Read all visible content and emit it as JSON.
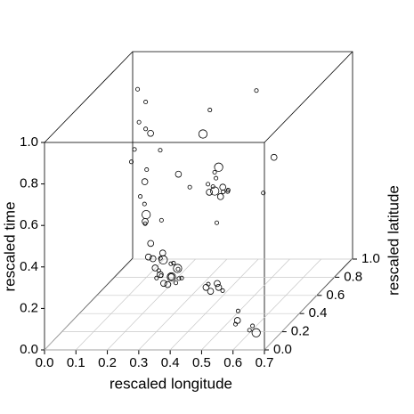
{
  "chart_data": {
    "type": "scatter3d",
    "xlabel": "rescaled longitude",
    "ylabel": "rescaled latitude",
    "zlabel": "rescaled time",
    "xlim": [
      0,
      0.7
    ],
    "ylim": [
      0,
      1
    ],
    "zlim": [
      0,
      1
    ],
    "xticks": [
      {
        "value": 0,
        "label": "0.0"
      },
      0.1,
      0.2,
      0.3,
      0.4,
      0.5,
      0.6,
      0.7
    ],
    "yticks": [
      {
        "value": 0,
        "label": "0.0"
      },
      0.2,
      0.4,
      0.6,
      0.8,
      {
        "value": 1,
        "label": "1.0"
      }
    ],
    "zticks": [
      {
        "value": 0,
        "label": "0.0"
      },
      0.2,
      0.4,
      0.6,
      0.8,
      {
        "value": 1,
        "label": "1.0"
      }
    ],
    "grid": true,
    "color": "#000000",
    "x": [
      0.24,
      0.25,
      0.26,
      0.27,
      0.28,
      0.29,
      0.3,
      0.31,
      0.25,
      0.27,
      0.29,
      0.32,
      0.23,
      0.26,
      0.28,
      0.3,
      0.33,
      0.24,
      0.27,
      0.31,
      0.38,
      0.39,
      0.4,
      0.41,
      0.42,
      0.43,
      0.44,
      0.4,
      0.41,
      0.42,
      0.39,
      0.45,
      0.1,
      0.12,
      0.11,
      0.13,
      0.09,
      0.14,
      0.12,
      0.1,
      0.13,
      0.11,
      0.15,
      0.08,
      0.12,
      0.14,
      0.43,
      0.45,
      0.46,
      0.47,
      0.44,
      0.48,
      0.2,
      0.35,
      0.28,
      0.5,
      0.18,
      0.45,
      0.3,
      0.38,
      0.22,
      0.52,
      0.33,
      0.26,
      0.58,
      0.62,
      0.6,
      0.64,
      0.56,
      0.63
    ],
    "y": [
      0.4,
      0.38,
      0.42,
      0.36,
      0.44,
      0.4,
      0.37,
      0.41,
      0.45,
      0.39,
      0.43,
      0.35,
      0.41,
      0.37,
      0.4,
      0.44,
      0.38,
      0.46,
      0.35,
      0.42,
      0.5,
      0.48,
      0.52,
      0.47,
      0.53,
      0.49,
      0.51,
      0.55,
      0.45,
      0.5,
      0.54,
      0.48,
      0.7,
      0.72,
      0.68,
      0.74,
      0.7,
      0.66,
      0.71,
      0.73,
      0.69,
      0.75,
      0.67,
      0.7,
      0.72,
      0.68,
      0.3,
      0.28,
      0.32,
      0.3,
      0.29,
      0.31,
      0.6,
      0.55,
      0.65,
      0.7,
      0.5,
      0.8,
      0.45,
      0.6,
      0.35,
      0.75,
      0.7,
      0.4,
      0.1,
      0.15,
      0.05,
      0.12,
      0.2,
      0.08
    ],
    "z": [
      0.22,
      0.18,
      0.25,
      0.2,
      0.16,
      0.24,
      0.19,
      0.21,
      0.27,
      0.15,
      0.23,
      0.17,
      0.26,
      0.22,
      0.14,
      0.2,
      0.18,
      0.24,
      0.21,
      0.16,
      0.58,
      0.55,
      0.6,
      0.56,
      0.53,
      0.57,
      0.54,
      0.64,
      0.59,
      0.52,
      0.62,
      0.56,
      0.95,
      0.88,
      0.8,
      0.72,
      0.66,
      0.58,
      0.5,
      0.42,
      0.35,
      0.28,
      0.22,
      0.6,
      0.75,
      0.15,
      0.17,
      0.16,
      0.18,
      0.17,
      0.19,
      0.15,
      0.7,
      0.8,
      0.5,
      0.45,
      0.4,
      0.9,
      0.65,
      0.35,
      0.55,
      0.6,
      0.85,
      0.45,
      0.08,
      0.05,
      0.12,
      0.03,
      0.1,
      0.06
    ],
    "sizes": [
      2,
      1,
      3,
      1,
      2,
      1,
      3,
      1,
      2,
      2,
      1,
      1,
      2,
      1,
      2,
      3,
      1,
      1,
      2,
      1,
      1,
      2,
      1,
      3,
      1,
      2,
      1,
      3,
      1,
      2,
      1,
      1,
      1,
      1,
      1,
      2,
      1,
      1,
      2,
      1,
      3,
      1,
      2,
      1,
      1,
      2,
      2,
      2,
      2,
      2,
      1,
      1,
      1,
      3,
      1,
      1,
      2,
      1,
      2,
      1,
      1,
      2,
      1,
      1,
      1,
      1,
      2,
      3,
      1,
      1
    ]
  }
}
